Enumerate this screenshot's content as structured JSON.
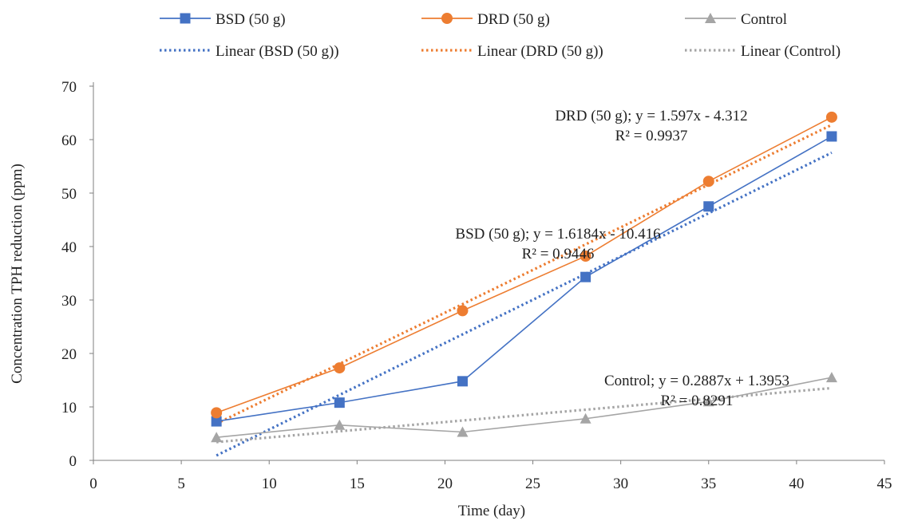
{
  "chart_data": {
    "type": "line",
    "xlabel": "Time (day)",
    "ylabel": "Concentration TPH reduction (ppm)",
    "xlim": [
      0,
      45
    ],
    "ylim": [
      0,
      70
    ],
    "xticks": [
      "0",
      "5",
      "10",
      "15",
      "20",
      "25",
      "30",
      "35",
      "40",
      "45"
    ],
    "yticks": [
      "0",
      "10",
      "20",
      "30",
      "40",
      "50",
      "60",
      "70"
    ],
    "grid": false,
    "legend_position": "top",
    "x": [
      7,
      14,
      21,
      28,
      35,
      42
    ],
    "series": [
      {
        "name": "BSD (50 g)",
        "values": [
          7.3,
          10.8,
          14.8,
          34.3,
          47.5,
          60.6
        ],
        "color": "#4472c4",
        "marker": "square"
      },
      {
        "name": "DRD (50 g)",
        "values": [
          8.9,
          17.3,
          28.0,
          38.2,
          52.2,
          64.2
        ],
        "color": "#ed7d31",
        "marker": "circle"
      },
      {
        "name": "Control",
        "values": [
          4.3,
          6.6,
          5.3,
          7.8,
          11.0,
          15.5
        ],
        "color": "#a5a5a5",
        "marker": "triangle"
      }
    ],
    "trendlines": [
      {
        "name": "Linear (BSD (50 g))",
        "slope": 1.6184,
        "intercept": -10.416,
        "color": "#4472c4"
      },
      {
        "name": "Linear (DRD (50 g))",
        "slope": 1.597,
        "intercept": -4.312,
        "color": "#ed7d31"
      },
      {
        "name": "Linear (Control)",
        "slope": 0.2887,
        "intercept": 1.3953,
        "color": "#a5a5a5"
      }
    ],
    "annotations": [
      {
        "line1": "DRD (50 g); y = 1.597x - 4.312",
        "line2": "R² = 0.9937"
      },
      {
        "line1": "BSD (50 g); y = 1.6184x - 10.416",
        "line2": "R² = 0.9446"
      },
      {
        "line1": "Control; y = 0.2887x + 1.3953",
        "line2": "R² = 0.8291"
      }
    ]
  }
}
